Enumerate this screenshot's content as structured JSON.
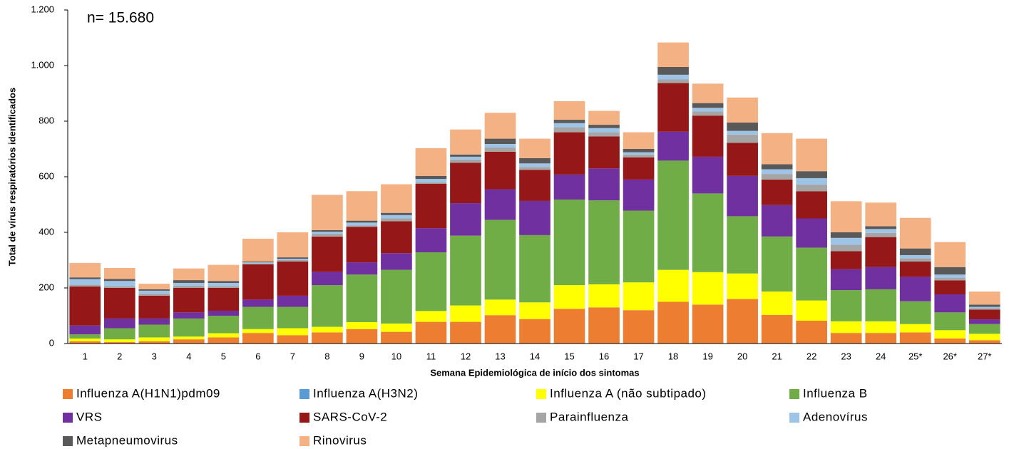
{
  "chart_data": {
    "type": "stacked_bar",
    "annotation": "n= 15.680",
    "x_label": "Semana Epidemiológica de início dos sintomas",
    "y_label": "Total de vírus respiratórios identificados",
    "categories": [
      "1",
      "2",
      "3",
      "4",
      "5",
      "6",
      "7",
      "8",
      "9",
      "10",
      "11",
      "12",
      "13",
      "14",
      "15",
      "16",
      "17",
      "18",
      "19",
      "20",
      "21",
      "22",
      "23",
      "24",
      "25*",
      "26*",
      "27*"
    ],
    "ylim": [
      0,
      1200
    ],
    "yticks": [
      0,
      200,
      400,
      600,
      800,
      {
        "value": 1000,
        "label": "1.000"
      },
      {
        "value": 1200,
        "label": "1.200"
      }
    ],
    "series": [
      {
        "name": "Influenza A(H1N1)pdm09",
        "color": "#ED7D31",
        "values": [
          8,
          5,
          8,
          15,
          22,
          38,
          30,
          40,
          52,
          42,
          78,
          78,
          102,
          88,
          125,
          130,
          120,
          150,
          140,
          160,
          103,
          82,
          38,
          38,
          40,
          18,
          12
        ]
      },
      {
        "name": "Influenza A(H3N2)",
        "color": "#5B9BD5",
        "values": [
          0,
          0,
          0,
          0,
          0,
          0,
          0,
          0,
          0,
          0,
          0,
          0,
          0,
          0,
          0,
          0,
          0,
          0,
          0,
          0,
          0,
          0,
          0,
          0,
          0,
          0,
          0
        ]
      },
      {
        "name": "Influenza A (não subtipado)",
        "color": "#FFFF00",
        "values": [
          10,
          10,
          14,
          10,
          15,
          14,
          25,
          20,
          25,
          30,
          39,
          59,
          56,
          60,
          85,
          83,
          100,
          115,
          117,
          92,
          84,
          73,
          42,
          42,
          30,
          30,
          23
        ]
      },
      {
        "name": "Influenza B",
        "color": "#70AD47",
        "values": [
          15,
          40,
          46,
          65,
          63,
          80,
          77,
          150,
          171,
          193,
          211,
          251,
          287,
          242,
          308,
          302,
          258,
          393,
          283,
          206,
          198,
          190,
          112,
          115,
          82,
          64,
          35
        ]
      },
      {
        "name": "VRS",
        "color": "#7030A0",
        "values": [
          32,
          35,
          22,
          22,
          18,
          26,
          40,
          48,
          44,
          60,
          87,
          117,
          110,
          123,
          90,
          115,
          112,
          104,
          132,
          145,
          113,
          105,
          75,
          80,
          88,
          65,
          17
        ]
      },
      {
        "name": "SARS-CoV-2",
        "color": "#951717",
        "values": [
          140,
          110,
          82,
          88,
          82,
          127,
          123,
          127,
          128,
          115,
          160,
          145,
          135,
          112,
          152,
          115,
          80,
          175,
          148,
          119,
          92,
          98,
          65,
          108,
          55,
          50,
          35
        ]
      },
      {
        "name": "Parainfluenza",
        "color": "#A5A5A5",
        "values": [
          7,
          7,
          8,
          8,
          7,
          3,
          5,
          10,
          5,
          10,
          5,
          12,
          15,
          10,
          18,
          15,
          10,
          13,
          15,
          30,
          20,
          24,
          23,
          15,
          12,
          10,
          5
        ]
      },
      {
        "name": "Adenovírus",
        "color": "#9DC3E6",
        "values": [
          20,
          18,
          10,
          10,
          11,
          4,
          5,
          7,
          10,
          12,
          12,
          10,
          13,
          13,
          15,
          15,
          8,
          17,
          13,
          13,
          17,
          23,
          25,
          14,
          11,
          11,
          5
        ]
      },
      {
        "name": "Metapneumovirus",
        "color": "#595959",
        "values": [
          6,
          7,
          5,
          10,
          7,
          3,
          5,
          6,
          7,
          8,
          11,
          8,
          19,
          19,
          12,
          12,
          12,
          28,
          17,
          30,
          18,
          25,
          20,
          10,
          24,
          27,
          8
        ]
      },
      {
        "name": "Rinovirus",
        "color": "#F4B183",
        "values": [
          52,
          40,
          20,
          42,
          58,
          82,
          90,
          127,
          106,
          103,
          100,
          90,
          93,
          70,
          67,
          50,
          60,
          88,
          70,
          90,
          112,
          117,
          112,
          85,
          110,
          90,
          47
        ]
      }
    ]
  }
}
